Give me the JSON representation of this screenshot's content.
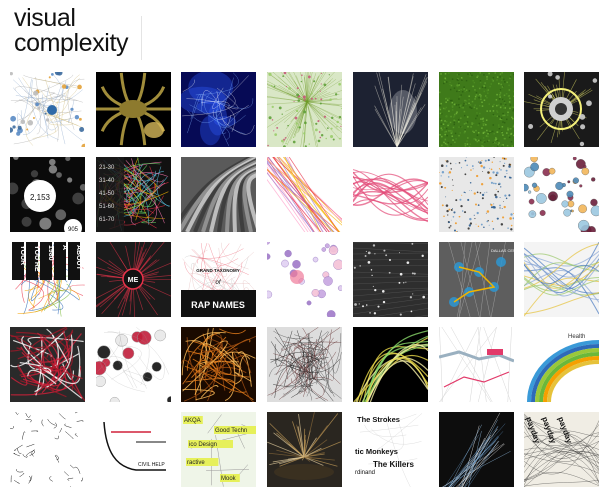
{
  "site": {
    "title_line1": "visual",
    "title_line2": "complexity"
  },
  "tiles": [
    {
      "row": 0,
      "col": 0,
      "theme": "network-dots",
      "bg": "#ffffff"
    },
    {
      "row": 0,
      "col": 1,
      "theme": "organic-yellow",
      "bg": "#000000"
    },
    {
      "row": 0,
      "col": 2,
      "theme": "blue-nebula",
      "bg": "#060a55"
    },
    {
      "row": 0,
      "col": 3,
      "theme": "green-particles",
      "bg": "#d9e7c6"
    },
    {
      "row": 0,
      "col": 4,
      "theme": "light-burst",
      "bg": "#1d2232"
    },
    {
      "row": 0,
      "col": 5,
      "theme": "green-texture",
      "bg": "#3f7a1a"
    },
    {
      "row": 0,
      "col": 6,
      "theme": "radial-sphere",
      "bg": "#1a1a1a"
    },
    {
      "row": 1,
      "col": 0,
      "theme": "black-bubbles",
      "bg": "#0a0a0a",
      "labels": [
        "2,153",
        "905"
      ]
    },
    {
      "row": 1,
      "col": 1,
      "theme": "age-bands",
      "bg": "#111111",
      "labels": [
        "21-30",
        "31-40",
        "41-50",
        "51-60",
        "61-70"
      ]
    },
    {
      "row": 1,
      "col": 2,
      "theme": "gray-ribbons",
      "bg": "#5a5a5a"
    },
    {
      "row": 1,
      "col": 3,
      "theme": "colored-lines",
      "bg": "#ffffff"
    },
    {
      "row": 1,
      "col": 4,
      "theme": "pink-flows",
      "bg": "#ffffff"
    },
    {
      "row": 1,
      "col": 5,
      "theme": "blue-orange-dots",
      "bg": "#e8e8e8"
    },
    {
      "row": 1,
      "col": 6,
      "theme": "bubble-cluster",
      "bg": "#ffffff"
    },
    {
      "row": 2,
      "col": 0,
      "theme": "word-columns",
      "bg": "#ffffff",
      "labels": [
        "YOUR",
        "YOU'RE",
        "1980",
        "A",
        "ABOUT"
      ]
    },
    {
      "row": 2,
      "col": 1,
      "theme": "red-network",
      "bg": "#1b1b1b",
      "labels": [
        "ME"
      ]
    },
    {
      "row": 2,
      "col": 2,
      "theme": "rap-names",
      "bg": "#ffffff",
      "labels": [
        "GRAND TAXONOMY",
        "of",
        "RAP NAMES"
      ]
    },
    {
      "row": 2,
      "col": 3,
      "theme": "purple-nodes",
      "bg": "#ffffff"
    },
    {
      "row": 2,
      "col": 4,
      "theme": "dark-grid-dots",
      "bg": "#2e2e2e"
    },
    {
      "row": 2,
      "col": 5,
      "theme": "blue-map",
      "bg": "#5e5e5e",
      "labels": [
        "DALLAS CENTER"
      ]
    },
    {
      "row": 2,
      "col": 6,
      "theme": "sankey-lines",
      "bg": "#f4f4f4"
    },
    {
      "row": 3,
      "col": 0,
      "theme": "red-tangle",
      "bg": "#2a2a2a"
    },
    {
      "row": 3,
      "col": 1,
      "theme": "red-bubbles",
      "bg": "#ffffff"
    },
    {
      "row": 3,
      "col": 2,
      "theme": "orange-veins",
      "bg": "#1a0a00"
    },
    {
      "row": 3,
      "col": 3,
      "theme": "black-web",
      "bg": "#dddddd"
    },
    {
      "row": 3,
      "col": 4,
      "theme": "yellow-arcs",
      "bg": "#000000"
    },
    {
      "row": 3,
      "col": 5,
      "theme": "pink-routes",
      "bg": "#ffffff"
    },
    {
      "row": 3,
      "col": 6,
      "theme": "rainbow-arc",
      "bg": "#ffffff",
      "labels": [
        "Health"
      ]
    },
    {
      "row": 4,
      "col": 0,
      "theme": "ink-flow",
      "bg": "#ffffff"
    },
    {
      "row": 4,
      "col": 1,
      "theme": "civil-help",
      "bg": "#ffffff",
      "labels": [
        "CIVIL HELP"
      ]
    },
    {
      "row": 4,
      "col": 2,
      "theme": "tag-cloud",
      "bg": "#eff5e8",
      "labels": [
        "AKQA",
        "Good Techn",
        "ico Design",
        "ractive",
        "Mook"
      ]
    },
    {
      "row": 4,
      "col": 3,
      "theme": "dark-sculpture",
      "bg": "#2a2620"
    },
    {
      "row": 4,
      "col": 4,
      "theme": "band-names",
      "bg": "#ffffff",
      "labels": [
        "The Strokes",
        "tic Monkeys",
        "The Killers",
        "rdinand"
      ]
    },
    {
      "row": 4,
      "col": 5,
      "theme": "blue-strands",
      "bg": "#0d0d0d"
    },
    {
      "row": 4,
      "col": 6,
      "theme": "payday-text",
      "bg": "#f0ede4",
      "labels": [
        "payday"
      ]
    }
  ]
}
